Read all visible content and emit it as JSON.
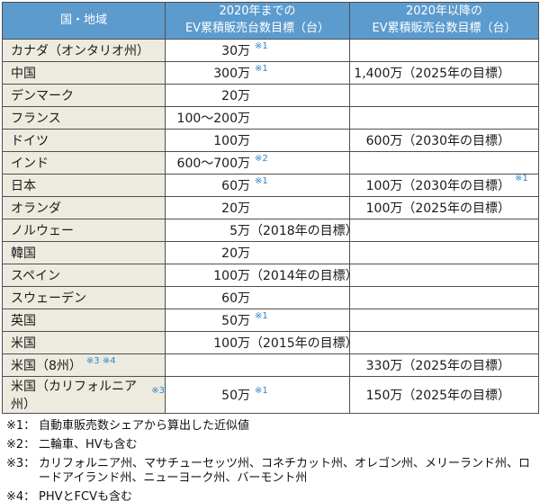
{
  "table": {
    "headers": {
      "region": "国・地域",
      "until_2020": {
        "line1": "2020年までの",
        "line2": "EV累積販売台数目標（台）"
      },
      "after_2020": {
        "line1": "2020年以降の",
        "line2": "EV累積販売台数目標（台）"
      }
    },
    "rows": [
      {
        "country": "カナダ（オンタリオ州）",
        "country_sup": "",
        "until_num": "30万",
        "until_paren": "",
        "until_sup": "※1",
        "after_text": "",
        "after_sup": ""
      },
      {
        "country": "中国",
        "country_sup": "",
        "until_num": "300万",
        "until_paren": "",
        "until_sup": "※1",
        "after_text": "1,400万（2025年の目標）",
        "after_sup": ""
      },
      {
        "country": "デンマーク",
        "country_sup": "",
        "until_num": "20万",
        "until_paren": "",
        "until_sup": "",
        "after_text": "",
        "after_sup": ""
      },
      {
        "country": "フランス",
        "country_sup": "",
        "until_num": "100～200万",
        "until_paren": "",
        "until_sup": "",
        "after_text": "",
        "after_sup": ""
      },
      {
        "country": "ドイツ",
        "country_sup": "",
        "until_num": "100万",
        "until_paren": "",
        "until_sup": "",
        "after_text": "600万（2030年の目標）",
        "after_sup": ""
      },
      {
        "country": "インド",
        "country_sup": "",
        "until_num": "600～700万",
        "until_paren": "",
        "until_sup": "※2",
        "after_text": "",
        "after_sup": ""
      },
      {
        "country": "日本",
        "country_sup": "",
        "until_num": "60万",
        "until_paren": "",
        "until_sup": "※1",
        "after_text": "100万（2030年の目標）",
        "after_sup": "※1"
      },
      {
        "country": "オランダ",
        "country_sup": "",
        "until_num": "20万",
        "until_paren": "",
        "until_sup": "",
        "after_text": "100万（2025年の目標）",
        "after_sup": ""
      },
      {
        "country": "ノルウェー",
        "country_sup": "",
        "until_num": "5万",
        "until_paren": "（2018年の目標）",
        "until_sup": "",
        "after_text": "",
        "after_sup": ""
      },
      {
        "country": "韓国",
        "country_sup": "",
        "until_num": "20万",
        "until_paren": "",
        "until_sup": "",
        "after_text": "",
        "after_sup": ""
      },
      {
        "country": "スペイン",
        "country_sup": "",
        "until_num": "100万",
        "until_paren": "（2014年の目標）",
        "until_sup": "",
        "after_text": "",
        "after_sup": ""
      },
      {
        "country": "スウェーデン",
        "country_sup": "",
        "until_num": "60万",
        "until_paren": "",
        "until_sup": "",
        "after_text": "",
        "after_sup": ""
      },
      {
        "country": "英国",
        "country_sup": "",
        "until_num": "50万",
        "until_paren": "",
        "until_sup": "※1",
        "after_text": "",
        "after_sup": ""
      },
      {
        "country": "米国",
        "country_sup": "",
        "until_num": "100万",
        "until_paren": "（2015年の目標）",
        "until_sup": "",
        "after_text": "",
        "after_sup": ""
      },
      {
        "country": "米国（8州）",
        "country_sup": "※3 ※4",
        "until_num": "",
        "until_paren": "",
        "until_sup": "",
        "after_text": "330万（2025年の目標）",
        "after_sup": ""
      },
      {
        "country": "米国（カリフォルニア州）",
        "country_sup": "※3",
        "until_num": "50万",
        "until_paren": "",
        "until_sup": "※1",
        "after_text": "150万（2025年の目標）",
        "after_sup": ""
      }
    ]
  },
  "footnotes": [
    {
      "label": "※1：",
      "text": "自動車販売数シェアから算出した近似値"
    },
    {
      "label": "※2：",
      "text": "二輪車、HVも含む"
    },
    {
      "label": "※3：",
      "text": "カリフォルニア州、マサチューセッツ州、コネチカット州、オレゴン州、メリーランド州、ロードアイランド州、ニューヨーク州、バーモント州"
    },
    {
      "label": "※4：",
      "text": "PHVとFCVも含む"
    }
  ],
  "colors": {
    "header_bg": "#5c9bce",
    "header_text": "#ffffff",
    "row_label_bg": "#edebdf",
    "border": "#4f4f4f",
    "footnote_ref_blue": "#2f86c8",
    "body_text": "#1a1a1a"
  }
}
